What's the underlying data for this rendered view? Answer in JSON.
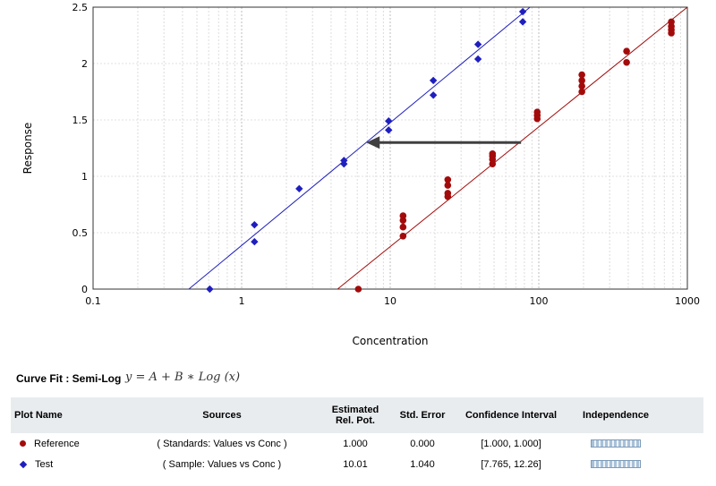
{
  "chart_data": {
    "type": "scatter",
    "x_scale": "log",
    "xlim": [
      0.1,
      1000
    ],
    "ylim": [
      0,
      2.5
    ],
    "xlabel": "Concentration",
    "ylabel": "Response",
    "x_ticks": [
      "0.1",
      "1",
      "10",
      "100",
      "1000"
    ],
    "y_ticks": [
      "0",
      "0.5",
      "1",
      "1.5",
      "2",
      "2.5"
    ],
    "grid": true,
    "series": [
      {
        "name": "Reference",
        "color": "#a30b0b",
        "marker": "circle",
        "points": [
          [
            6.1,
            0.0
          ],
          [
            12.2,
            0.47
          ],
          [
            12.2,
            0.55
          ],
          [
            12.2,
            0.61
          ],
          [
            12.2,
            0.65
          ],
          [
            24.4,
            0.82
          ],
          [
            24.4,
            0.85
          ],
          [
            24.4,
            0.92
          ],
          [
            24.4,
            0.97
          ],
          [
            48.8,
            1.11
          ],
          [
            48.8,
            1.15
          ],
          [
            48.8,
            1.18
          ],
          [
            48.8,
            1.2
          ],
          [
            97.6,
            1.51
          ],
          [
            97.6,
            1.54
          ],
          [
            97.6,
            1.57
          ],
          [
            195,
            1.75
          ],
          [
            195,
            1.8
          ],
          [
            195,
            1.85
          ],
          [
            195,
            1.9
          ],
          [
            390,
            2.01
          ],
          [
            390,
            2.11
          ],
          [
            780,
            2.27
          ],
          [
            780,
            2.3
          ],
          [
            780,
            2.33
          ],
          [
            780,
            2.37
          ]
        ],
        "fit_line": [
          [
            4.42,
            0.0
          ],
          [
            1000,
            2.55
          ]
        ]
      },
      {
        "name": "Test",
        "color": "#1f1fbf",
        "marker": "diamond",
        "points": [
          [
            0.61,
            0.0
          ],
          [
            1.22,
            0.42
          ],
          [
            1.22,
            0.57
          ],
          [
            2.44,
            0.89
          ],
          [
            4.88,
            1.11
          ],
          [
            4.88,
            1.14
          ],
          [
            9.76,
            1.41
          ],
          [
            9.76,
            1.49
          ],
          [
            19.5,
            1.72
          ],
          [
            19.5,
            1.85
          ],
          [
            39.0,
            2.04
          ],
          [
            39.0,
            2.17
          ],
          [
            78.0,
            2.37
          ],
          [
            78.0,
            2.46
          ]
        ],
        "fit_line": [
          [
            0.441,
            0.0
          ],
          [
            87.3,
            2.5
          ]
        ]
      }
    ],
    "annotation": {
      "type": "arrow",
      "from": [
        76,
        1.3
      ],
      "to": [
        6.9,
        1.3
      ],
      "color": "#404040"
    }
  },
  "curve_fit": {
    "label": "Curve Fit : Semi-Log",
    "equation": "y = A + B ∗ Log (x)"
  },
  "table": {
    "headers": {
      "plot_name": "Plot Name",
      "sources": "Sources",
      "rel_pot_line1": "Estimated",
      "rel_pot_line2": "Rel. Pot.",
      "std_error": "Std. Error",
      "conf_interval": "Confidence Interval",
      "independence": "Independence"
    },
    "rows": [
      {
        "name": "Reference",
        "marker": "circle",
        "sources": "( Standards: Values vs Conc )",
        "rel_pot": "1.000",
        "std_error": "0.000",
        "conf_interval": "[1.000, 1.000]"
      },
      {
        "name": "Test",
        "marker": "diamond",
        "sources": "( Sample: Values vs Conc )",
        "rel_pot": "10.01",
        "std_error": "1.040",
        "conf_interval": "[7.765, 12.26]"
      }
    ]
  }
}
